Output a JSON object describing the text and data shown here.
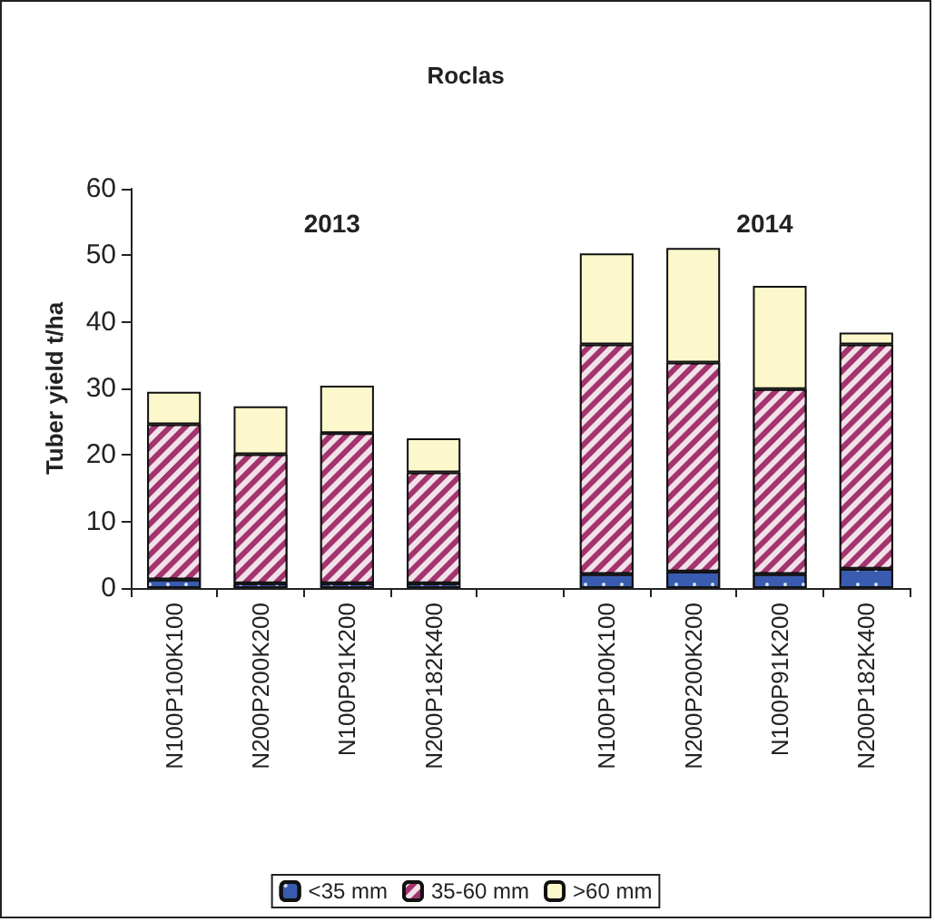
{
  "chart_data": {
    "type": "bar",
    "title": "Roclas",
    "ylabel": "Tuber yield t/ha",
    "stacked": true,
    "legend": "bottom",
    "grid": false,
    "categories": [
      "N100P100K100",
      "N200P200K200",
      "N100P91K200",
      "N200P182K400",
      null,
      "N100P100K100",
      "N200P200K200",
      "N100P91K200",
      "N200P182K400"
    ],
    "series": [
      {
        "name": "<35 mm",
        "color": "#3a5cb0",
        "values": [
          1.3,
          0.7,
          0.7,
          0.7,
          null,
          2.1,
          2.5,
          2.1,
          2.9
        ]
      },
      {
        "name": "35-60 mm",
        "color": "#a3346e",
        "values": [
          23.3,
          19.4,
          22.6,
          16.7,
          null,
          34.5,
          31.4,
          27.8,
          33.7
        ]
      },
      {
        "name": ">60 mm",
        "color": "#fcf8cc",
        "values": [
          4.9,
          7.2,
          7.1,
          5.1,
          null,
          13.7,
          17.2,
          15.5,
          1.8
        ]
      }
    ],
    "ylim": [
      0,
      60
    ],
    "yticks": [
      0,
      10,
      20,
      30,
      40,
      50,
      60
    ],
    "annotations": [
      "2013",
      "2014"
    ]
  }
}
